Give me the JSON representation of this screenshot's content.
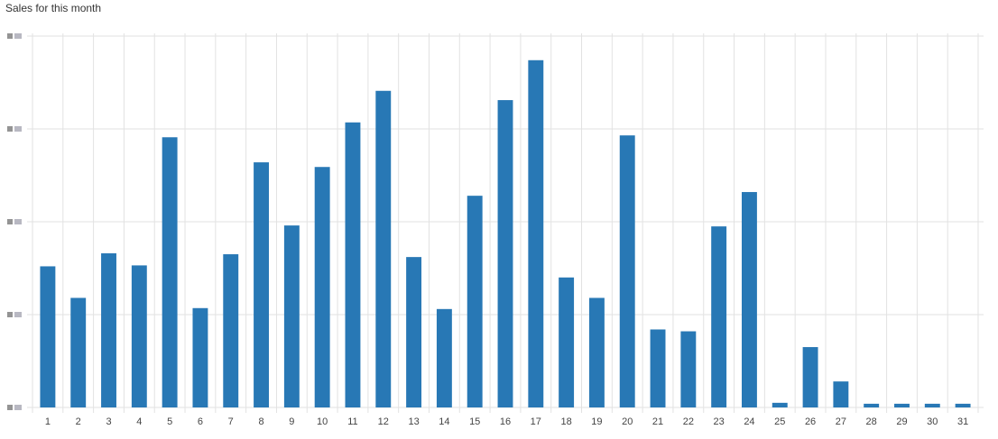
{
  "chart_data": {
    "type": "bar",
    "title": "Sales for this month",
    "categories": [
      "1",
      "2",
      "3",
      "4",
      "5",
      "6",
      "7",
      "8",
      "9",
      "10",
      "11",
      "12",
      "13",
      "14",
      "15",
      "16",
      "17",
      "18",
      "19",
      "20",
      "21",
      "22",
      "23",
      "24",
      "25",
      "26",
      "27",
      "28",
      "29",
      "30",
      "31"
    ],
    "values": [
      1.52,
      1.18,
      1.66,
      1.53,
      2.91,
      1.07,
      1.65,
      2.64,
      1.96,
      2.59,
      3.07,
      3.41,
      1.62,
      1.06,
      2.28,
      3.31,
      3.74,
      1.4,
      1.18,
      2.93,
      0.84,
      0.82,
      1.95,
      2.32,
      0.05,
      0.65,
      0.28,
      0.04,
      0.04,
      0.04,
      0.04
    ],
    "color": "#2878b5",
    "ylim": [
      0,
      4
    ],
    "yticks": [
      0,
      1,
      2,
      3,
      4
    ],
    "grid": true
  }
}
